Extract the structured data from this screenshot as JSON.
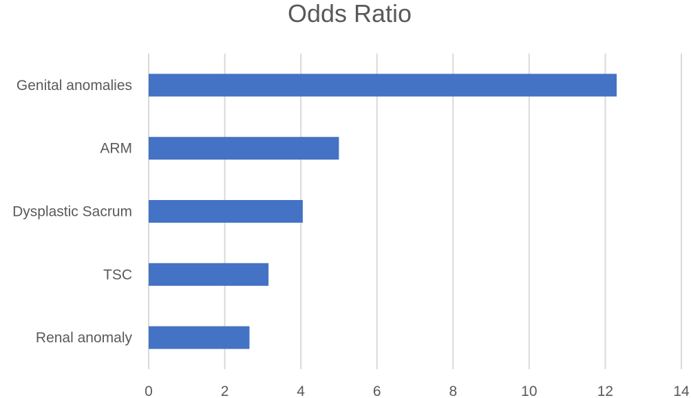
{
  "chart_data": {
    "type": "bar",
    "orientation": "horizontal",
    "title": "Odds Ratio",
    "categories": [
      "Genital anomalies",
      "ARM",
      "Dysplastic Sacrum",
      "TSC",
      "Renal anomaly"
    ],
    "values": [
      12.3,
      5.0,
      4.05,
      3.15,
      2.65
    ],
    "xlim": [
      0,
      14
    ],
    "xticks": [
      0,
      2,
      4,
      6,
      8,
      10,
      12,
      14
    ],
    "grid": "vertical",
    "bar_color": "#4472C4",
    "grid_color": "#D9D9D9",
    "text_color": "#595959",
    "legend": "none"
  }
}
